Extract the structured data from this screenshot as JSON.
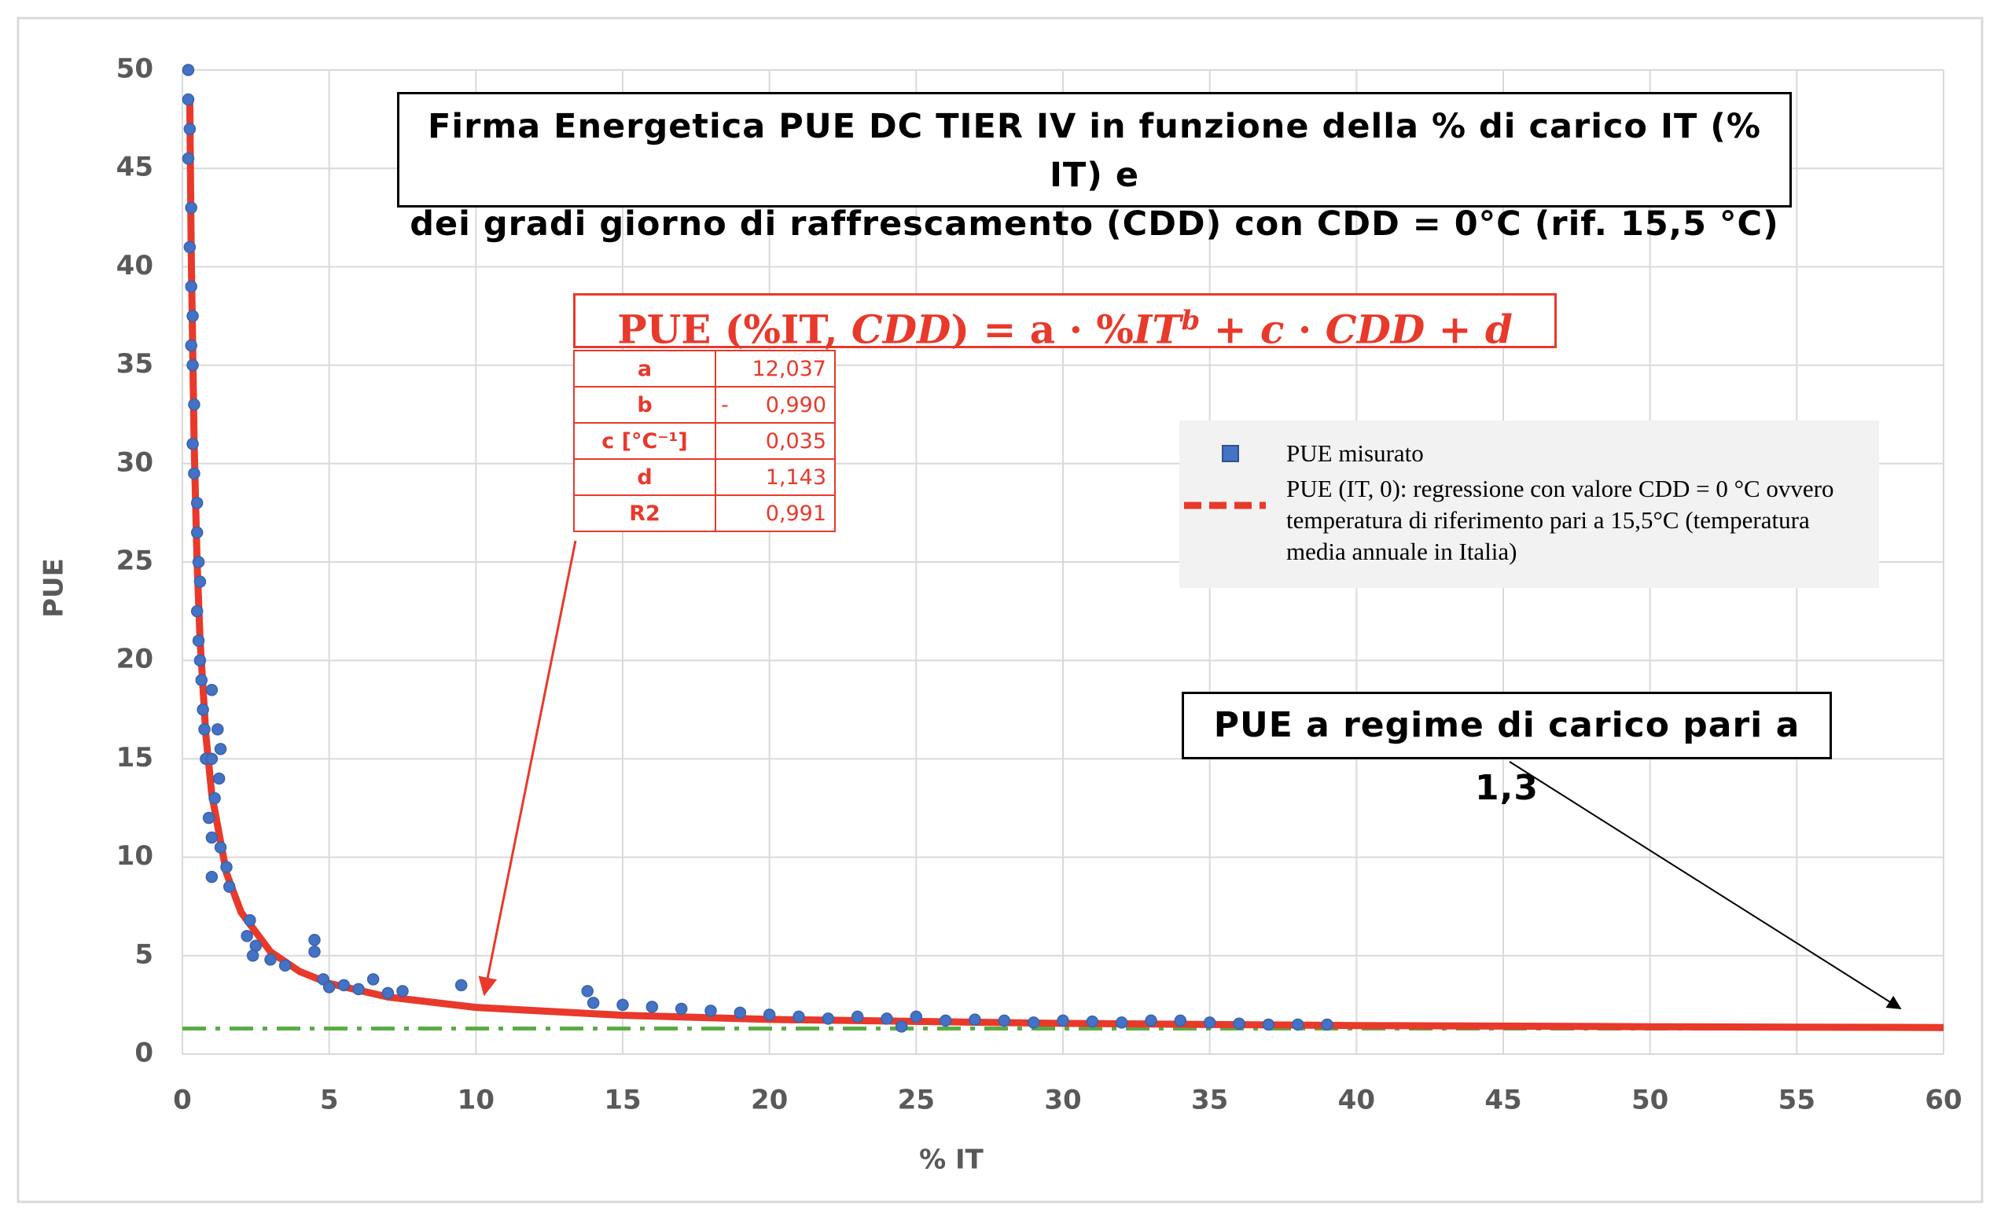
{
  "chart_data": {
    "type": "scatter",
    "title": [
      "Firma Energetica PUE DC TIER IV in funzione della % di carico IT (% IT) e",
      "dei gradi giorno di raffrescamento (CDD) con CDD = 0°C (rif. 15,5 °C)"
    ],
    "xlabel": "% IT",
    "ylabel": "PUE",
    "xlim": [
      0,
      60
    ],
    "ylim": [
      0,
      50
    ],
    "xticks": [
      0,
      5,
      10,
      15,
      20,
      25,
      30,
      35,
      40,
      45,
      50,
      55,
      60
    ],
    "yticks": [
      0,
      5,
      10,
      15,
      20,
      25,
      30,
      35,
      40,
      45,
      50
    ],
    "grid": true,
    "series": [
      {
        "name": "PUE misurato",
        "color": "#4472c4",
        "mode": "markers",
        "x": [
          0.2,
          0.2,
          0.25,
          0.2,
          0.3,
          0.25,
          0.3,
          0.35,
          0.3,
          0.35,
          0.4,
          0.35,
          0.4,
          0.5,
          0.5,
          0.55,
          0.6,
          0.5,
          0.55,
          0.6,
          0.65,
          0.7,
          0.75,
          0.8,
          1.0,
          1.0,
          1.2,
          1.3,
          1.25,
          1.1,
          0.9,
          1.0,
          1.3,
          1.5,
          1.0,
          1.6,
          2.3,
          2.2,
          2.5,
          2.4,
          3,
          3.5,
          4.5,
          4.5,
          4.8,
          5,
          5.5,
          6,
          6.5,
          7,
          7.5,
          9.5,
          13.8,
          14,
          15,
          16,
          17,
          18,
          19,
          20,
          21,
          22,
          23,
          24,
          24.5,
          25,
          26,
          27,
          28,
          29,
          30,
          31,
          32,
          33,
          34,
          35,
          36,
          37,
          38,
          39
        ],
        "values": [
          50,
          48.5,
          47,
          45.5,
          43,
          41,
          39,
          37.5,
          36,
          35,
          33,
          31,
          29.5,
          28,
          26.5,
          25,
          24,
          22.5,
          21,
          20,
          19,
          17.5,
          16.5,
          15,
          15,
          18.5,
          16.5,
          15.5,
          14,
          13,
          12,
          11,
          10.5,
          9.5,
          9,
          8.5,
          6.8,
          6,
          5.5,
          5,
          4.8,
          4.5,
          5.8,
          5.2,
          3.8,
          3.4,
          3.5,
          3.3,
          3.8,
          3.1,
          3.2,
          3.5,
          3.2,
          2.6,
          2.5,
          2.4,
          2.3,
          2.2,
          2.1,
          2.0,
          1.9,
          1.8,
          1.9,
          1.8,
          1.4,
          1.9,
          1.7,
          1.75,
          1.7,
          1.6,
          1.7,
          1.65,
          1.6,
          1.7,
          1.7,
          1.6,
          1.55,
          1.5,
          1.5,
          1.5
        ]
      },
      {
        "name": "PUE (IT, 0): regressione con valore CDD = 0 °C ovvero temperatura di riferimento pari a 15,5°C (temperatura media annuale in Italia)",
        "color": "#e8392b",
        "mode": "line",
        "x": [
          0.25,
          0.3,
          0.4,
          0.5,
          0.6,
          0.8,
          1,
          1.5,
          2,
          3,
          4,
          5,
          7,
          10,
          15,
          20,
          30,
          40,
          50,
          60
        ],
        "values": [
          48.6,
          40.8,
          31.0,
          25.0,
          21.1,
          16.2,
          13.2,
          9.2,
          7.2,
          5.2,
          4.19,
          3.59,
          2.9,
          2.37,
          1.97,
          1.76,
          1.56,
          1.45,
          1.39,
          1.35
        ]
      }
    ],
    "reference_line": {
      "value": 1.3,
      "color": "#5aac44"
    },
    "annotations": {
      "formula": [
        "PUE (%IT,",
        "CDD",
        ") = a · %",
        "IT",
        "b",
        " + ",
        "c",
        " · ",
        "CDD",
        " + ",
        "d"
      ],
      "table": [
        {
          "label": "a",
          "value": "12,037"
        },
        {
          "label": "b",
          "sign": "-",
          "value": "0,990"
        },
        {
          "label": "c [°C⁻¹]",
          "value": "0,035"
        },
        {
          "label": "d",
          "value": "1,143"
        },
        {
          "label": "R2",
          "value": "0,991"
        }
      ],
      "note": "PUE a regime di carico pari a 1,3"
    }
  }
}
